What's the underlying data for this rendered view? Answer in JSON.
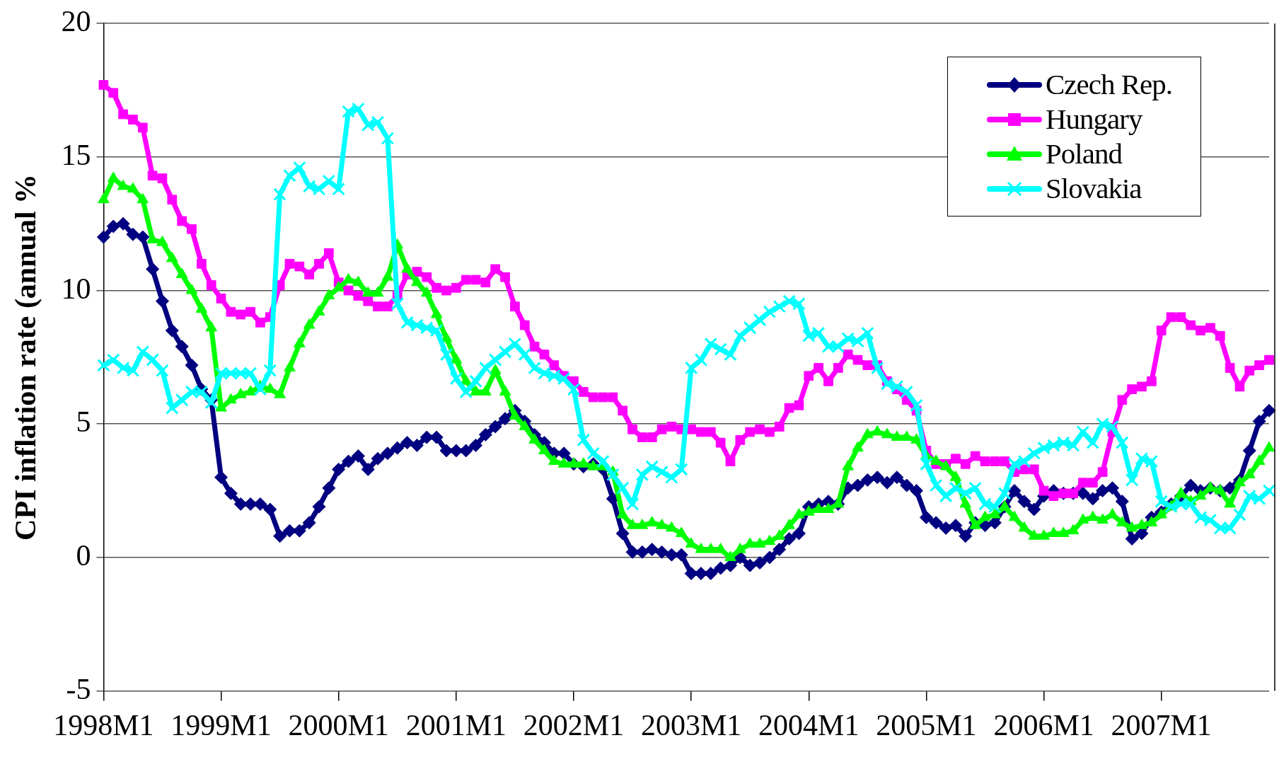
{
  "chart_data": {
    "type": "line",
    "ylabel": "CPI inflation rate (annual %",
    "categories": [
      "1998M1",
      null,
      null,
      null,
      null,
      null,
      null,
      null,
      null,
      null,
      null,
      null,
      "1999M1",
      null,
      null,
      null,
      null,
      null,
      null,
      null,
      null,
      null,
      null,
      null,
      "2000M1",
      null,
      null,
      null,
      null,
      null,
      null,
      null,
      null,
      null,
      null,
      null,
      "2001M1",
      null,
      null,
      null,
      null,
      null,
      null,
      null,
      null,
      null,
      null,
      null,
      "2002M1",
      null,
      null,
      null,
      null,
      null,
      null,
      null,
      null,
      null,
      null,
      null,
      "2003M1",
      null,
      null,
      null,
      null,
      null,
      null,
      null,
      null,
      null,
      null,
      null,
      "2004M1",
      null,
      null,
      null,
      null,
      null,
      null,
      null,
      null,
      null,
      null,
      null,
      "2005M1",
      null,
      null,
      null,
      null,
      null,
      null,
      null,
      null,
      null,
      null,
      null,
      "2006M1",
      null,
      null,
      null,
      null,
      null,
      null,
      null,
      null,
      null,
      null,
      null,
      "2007M1",
      null,
      null,
      null,
      null,
      null,
      null,
      null,
      null,
      null,
      null,
      null
    ],
    "series": [
      {
        "name": "Czech Rep.",
        "color": "#000080",
        "marker": "diamond",
        "values": [
          12.0,
          12.4,
          12.5,
          12.1,
          12.0,
          10.8,
          9.6,
          8.5,
          7.9,
          7.2,
          6.3,
          5.9,
          3.0,
          2.4,
          2.0,
          2.0,
          2.0,
          1.8,
          0.8,
          1.0,
          1.0,
          1.3,
          1.9,
          2.6,
          3.3,
          3.6,
          3.8,
          3.3,
          3.7,
          3.9,
          4.1,
          4.3,
          4.2,
          4.5,
          4.5,
          4.0,
          4.0,
          4.0,
          4.2,
          4.6,
          4.9,
          5.2,
          5.5,
          5.1,
          4.6,
          4.3,
          3.9,
          3.9,
          3.5,
          3.4,
          3.5,
          3.3,
          2.2,
          0.9,
          0.2,
          0.2,
          0.3,
          0.2,
          0.1,
          0.1,
          -0.6,
          -0.6,
          -0.6,
          -0.4,
          -0.3,
          0.0,
          -0.3,
          -0.2,
          0.0,
          0.3,
          0.7,
          0.9,
          1.9,
          2.0,
          2.1,
          2.0,
          2.6,
          2.7,
          2.9,
          3.0,
          2.8,
          3.0,
          2.7,
          2.5,
          1.5,
          1.3,
          1.1,
          1.2,
          0.8,
          1.3,
          1.2,
          1.3,
          1.9,
          2.5,
          2.1,
          1.8,
          2.3,
          2.5,
          2.4,
          2.4,
          2.4,
          2.2,
          2.5,
          2.6,
          2.1,
          0.7,
          0.9,
          1.5,
          1.7,
          2.0,
          2.3,
          2.7,
          2.5,
          2.6,
          2.5,
          2.6,
          2.9,
          4.0,
          5.1,
          5.5
        ]
      },
      {
        "name": "Hungary",
        "color": "#ff00ff",
        "marker": "square",
        "values": [
          17.7,
          17.4,
          16.6,
          16.4,
          16.1,
          14.3,
          14.2,
          13.4,
          12.6,
          12.3,
          11.0,
          10.2,
          9.7,
          9.2,
          9.1,
          9.2,
          8.8,
          9.0,
          10.2,
          11.0,
          10.9,
          10.6,
          11.0,
          11.4,
          10.3,
          10.0,
          9.8,
          9.6,
          9.4,
          9.4,
          9.8,
          10.6,
          10.7,
          10.5,
          10.1,
          10.0,
          10.1,
          10.4,
          10.4,
          10.3,
          10.8,
          10.5,
          9.4,
          8.7,
          7.9,
          7.6,
          7.2,
          6.8,
          6.6,
          6.2,
          6.0,
          6.0,
          6.0,
          5.5,
          4.8,
          4.5,
          4.5,
          4.8,
          4.9,
          4.8,
          4.8,
          4.7,
          4.7,
          4.3,
          3.6,
          4.4,
          4.7,
          4.8,
          4.7,
          4.9,
          5.6,
          5.7,
          6.8,
          7.1,
          6.6,
          7.1,
          7.6,
          7.4,
          7.2,
          7.2,
          6.6,
          6.3,
          5.9,
          5.5,
          4.0,
          3.5,
          3.5,
          3.7,
          3.5,
          3.8,
          3.6,
          3.6,
          3.6,
          3.2,
          3.3,
          3.3,
          2.5,
          2.3,
          2.4,
          2.4,
          2.8,
          2.8,
          3.2,
          4.7,
          5.9,
          6.3,
          6.4,
          6.6,
          8.5,
          9.0,
          9.0,
          8.7,
          8.5,
          8.6,
          8.3,
          7.1,
          6.4,
          7.0,
          7.2,
          7.4
        ]
      },
      {
        "name": "Poland",
        "color": "#00ff00",
        "marker": "triangle",
        "values": [
          13.4,
          14.2,
          13.9,
          13.8,
          13.4,
          11.9,
          11.8,
          11.2,
          10.6,
          10.0,
          9.3,
          8.6,
          5.6,
          5.9,
          6.1,
          6.2,
          6.4,
          6.3,
          6.1,
          7.1,
          8.0,
          8.7,
          9.2,
          9.8,
          10.1,
          10.4,
          10.3,
          9.9,
          9.9,
          10.5,
          11.7,
          10.8,
          10.3,
          9.9,
          9.1,
          8.2,
          7.4,
          6.6,
          6.2,
          6.2,
          7.0,
          6.2,
          5.3,
          4.9,
          4.4,
          4.0,
          3.6,
          3.5,
          3.5,
          3.5,
          3.4,
          3.4,
          3.2,
          1.6,
          1.2,
          1.2,
          1.3,
          1.2,
          1.1,
          0.9,
          0.5,
          0.3,
          0.3,
          0.3,
          0.0,
          0.3,
          0.5,
          0.5,
          0.6,
          0.8,
          1.2,
          1.6,
          1.7,
          1.8,
          1.8,
          2.0,
          3.4,
          4.1,
          4.6,
          4.7,
          4.6,
          4.5,
          4.5,
          4.4,
          3.8,
          3.6,
          3.4,
          3.0,
          2.0,
          1.2,
          1.5,
          1.6,
          1.9,
          1.5,
          1.1,
          0.8,
          0.8,
          0.9,
          0.9,
          1.0,
          1.4,
          1.5,
          1.4,
          1.6,
          1.3,
          1.1,
          1.2,
          1.3,
          1.6,
          1.9,
          2.4,
          2.1,
          2.3,
          2.6,
          2.5,
          2.0,
          2.8,
          3.1,
          3.6,
          4.1
        ]
      },
      {
        "name": "Slovakia",
        "color": "#00ffff",
        "marker": "cross",
        "values": [
          7.2,
          7.4,
          7.1,
          7.0,
          7.7,
          7.4,
          7.0,
          5.6,
          5.9,
          6.2,
          6.2,
          5.8,
          6.9,
          6.9,
          6.9,
          6.9,
          6.3,
          7.0,
          13.6,
          14.3,
          14.6,
          13.9,
          13.8,
          14.1,
          13.8,
          16.7,
          16.8,
          16.2,
          16.3,
          15.7,
          9.5,
          8.8,
          8.7,
          8.6,
          8.5,
          7.6,
          6.7,
          6.2,
          6.6,
          7.1,
          7.4,
          7.7,
          8.0,
          7.6,
          7.1,
          6.9,
          6.8,
          6.7,
          6.3,
          4.4,
          3.9,
          3.6,
          3.1,
          2.6,
          2.0,
          3.1,
          3.4,
          3.2,
          3.0,
          3.3,
          7.1,
          7.4,
          8.0,
          7.8,
          7.6,
          8.3,
          8.6,
          8.9,
          9.2,
          9.4,
          9.6,
          9.5,
          8.3,
          8.4,
          7.9,
          7.9,
          8.2,
          8.1,
          8.4,
          7.1,
          6.5,
          6.4,
          6.2,
          5.7,
          3.5,
          2.7,
          2.3,
          2.6,
          2.4,
          2.6,
          2.0,
          1.9,
          2.4,
          3.5,
          3.6,
          3.9,
          4.1,
          4.2,
          4.3,
          4.2,
          4.7,
          4.3,
          5.0,
          4.9,
          4.3,
          2.9,
          3.7,
          3.6,
          2.1,
          1.9,
          2.0,
          2.0,
          1.5,
          1.4,
          1.1,
          1.1,
          1.6,
          2.3,
          2.2,
          2.5
        ]
      }
    ],
    "ylim": [
      -5,
      20
    ],
    "yticks": [
      -5,
      0,
      5,
      10,
      15,
      20
    ],
    "grid": "y",
    "legend": "top right",
    "line_style": "solid"
  }
}
